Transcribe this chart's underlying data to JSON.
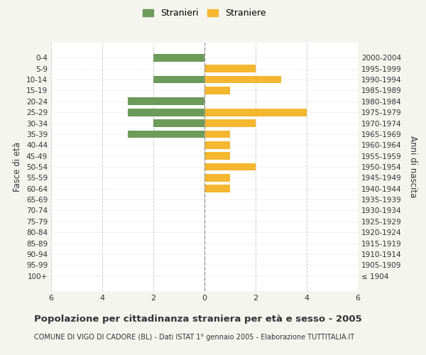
{
  "age_groups": [
    "100+",
    "95-99",
    "90-94",
    "85-89",
    "80-84",
    "75-79",
    "70-74",
    "65-69",
    "60-64",
    "55-59",
    "50-54",
    "45-49",
    "40-44",
    "35-39",
    "30-34",
    "25-29",
    "20-24",
    "15-19",
    "10-14",
    "5-9",
    "0-4"
  ],
  "birth_years": [
    "≤ 1904",
    "1905-1909",
    "1910-1914",
    "1915-1919",
    "1920-1924",
    "1925-1929",
    "1930-1934",
    "1935-1939",
    "1940-1944",
    "1945-1949",
    "1950-1954",
    "1955-1959",
    "1960-1964",
    "1965-1969",
    "1970-1974",
    "1975-1979",
    "1980-1984",
    "1985-1989",
    "1990-1994",
    "1995-1999",
    "2000-2004"
  ],
  "males": [
    0,
    0,
    0,
    0,
    0,
    0,
    0,
    0,
    0,
    0,
    0,
    0,
    0,
    3,
    2,
    3,
    3,
    0,
    2,
    0,
    2
  ],
  "females": [
    0,
    0,
    0,
    0,
    0,
    0,
    0,
    0,
    1,
    1,
    2,
    1,
    1,
    1,
    2,
    4,
    0,
    1,
    3,
    2,
    0
  ],
  "male_color": "#6d9b5a",
  "female_color": "#f5b730",
  "xlim": 6,
  "title": "Popolazione per cittadinanza straniera per età e sesso - 2005",
  "subtitle": "COMUNE DI VIGO DI CADORE (BL) - Dati ISTAT 1° gennaio 2005 - Elaborazione TUTTITALIA.IT",
  "legend_male": "Stranieri",
  "legend_female": "Straniere",
  "ylabel_left": "Fasce di età",
  "ylabel_right": "Anni di nascita",
  "bg_color": "#f5f5f0",
  "plot_bg_color": "#ffffff",
  "grid_color": "#cccccc",
  "text_color": "#333333"
}
